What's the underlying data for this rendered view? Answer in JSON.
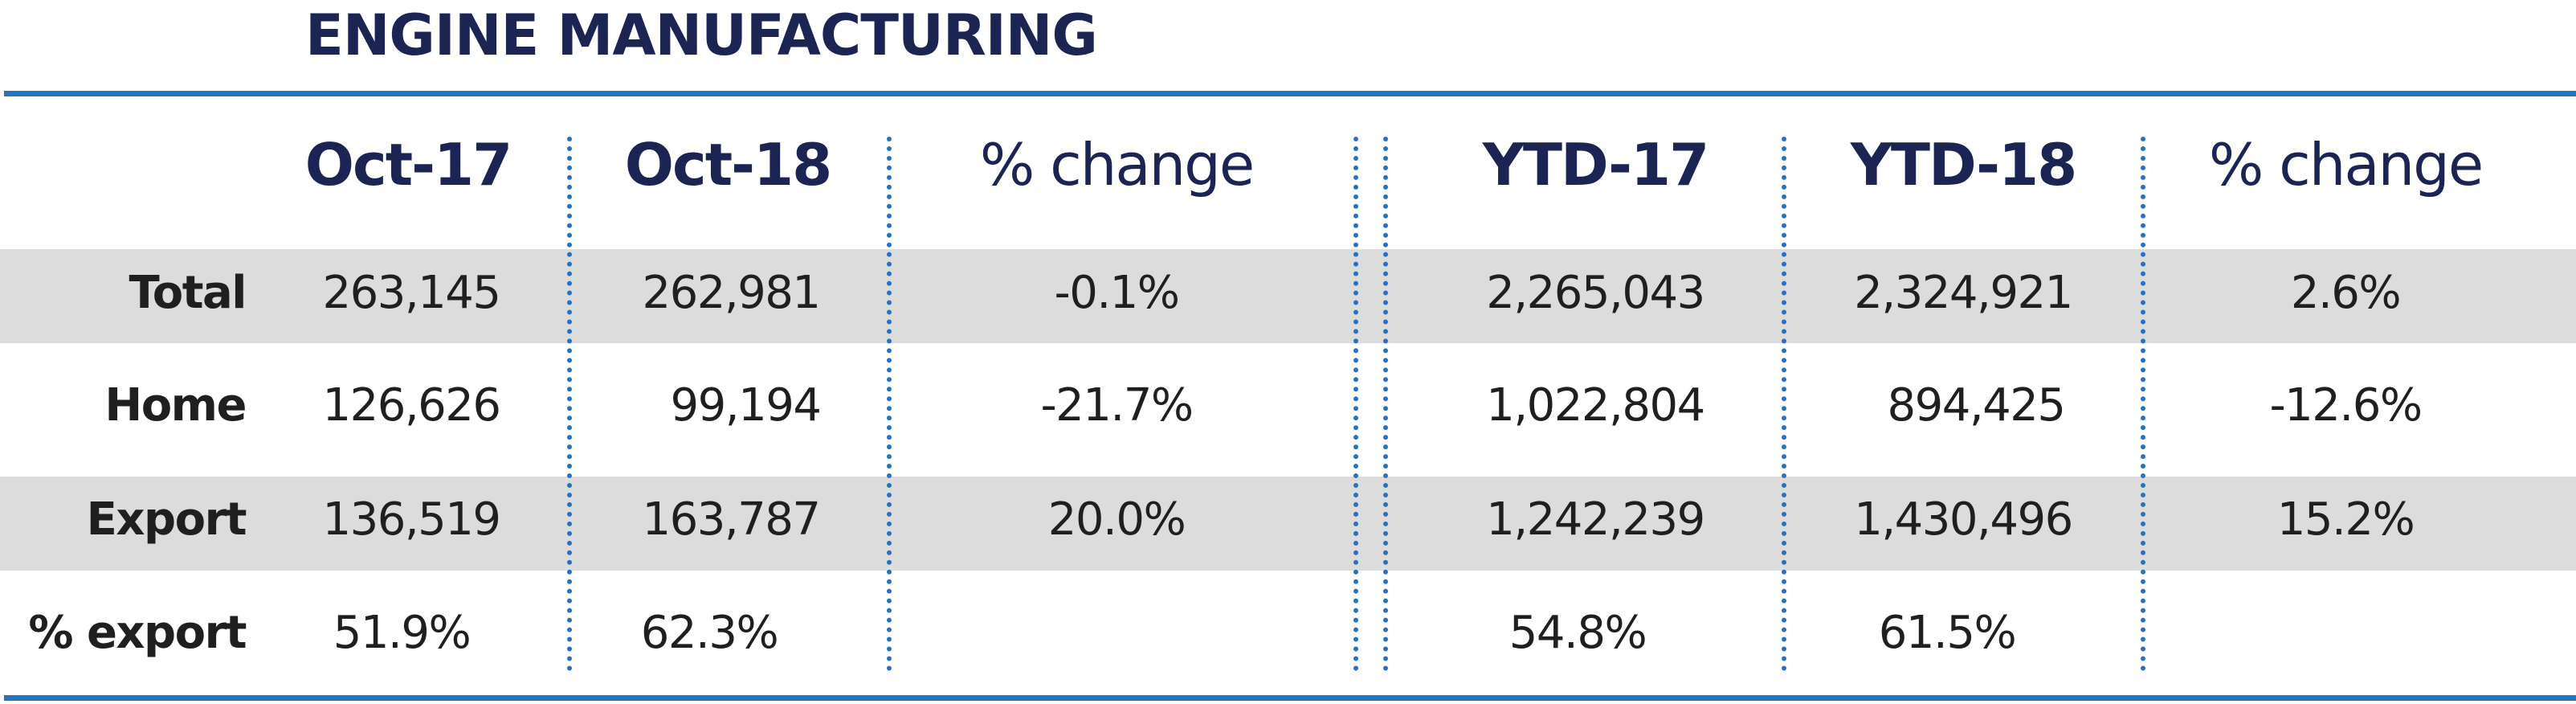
{
  "title": "ENGINE MANUFACTURING",
  "chart_data": {
    "type": "table",
    "title": "ENGINE MANUFACTURING",
    "columns": [
      "Oct-17",
      "Oct-18",
      "% change",
      "YTD-17",
      "YTD-18",
      "% change"
    ],
    "rows": [
      {
        "label": "Total",
        "values": [
          "263,145",
          "262,981",
          "-0.1%",
          "2,265,043",
          "2,324,921",
          "2.6%"
        ]
      },
      {
        "label": "Home",
        "values": [
          "126,626",
          "99,194",
          "-21.7%",
          "1,022,804",
          "894,425",
          "-12.6%"
        ]
      },
      {
        "label": "Export",
        "values": [
          "136,519",
          "163,787",
          "20.0%",
          "1,242,239",
          "1,430,496",
          "15.2%"
        ]
      },
      {
        "label": "% export",
        "values": [
          "51.9%",
          "62.3%",
          "",
          "54.8%",
          "61.5%",
          ""
        ]
      }
    ]
  },
  "colors": {
    "accent": "#2571c2",
    "title": "#1b2452",
    "band": "#dcdcdc"
  }
}
